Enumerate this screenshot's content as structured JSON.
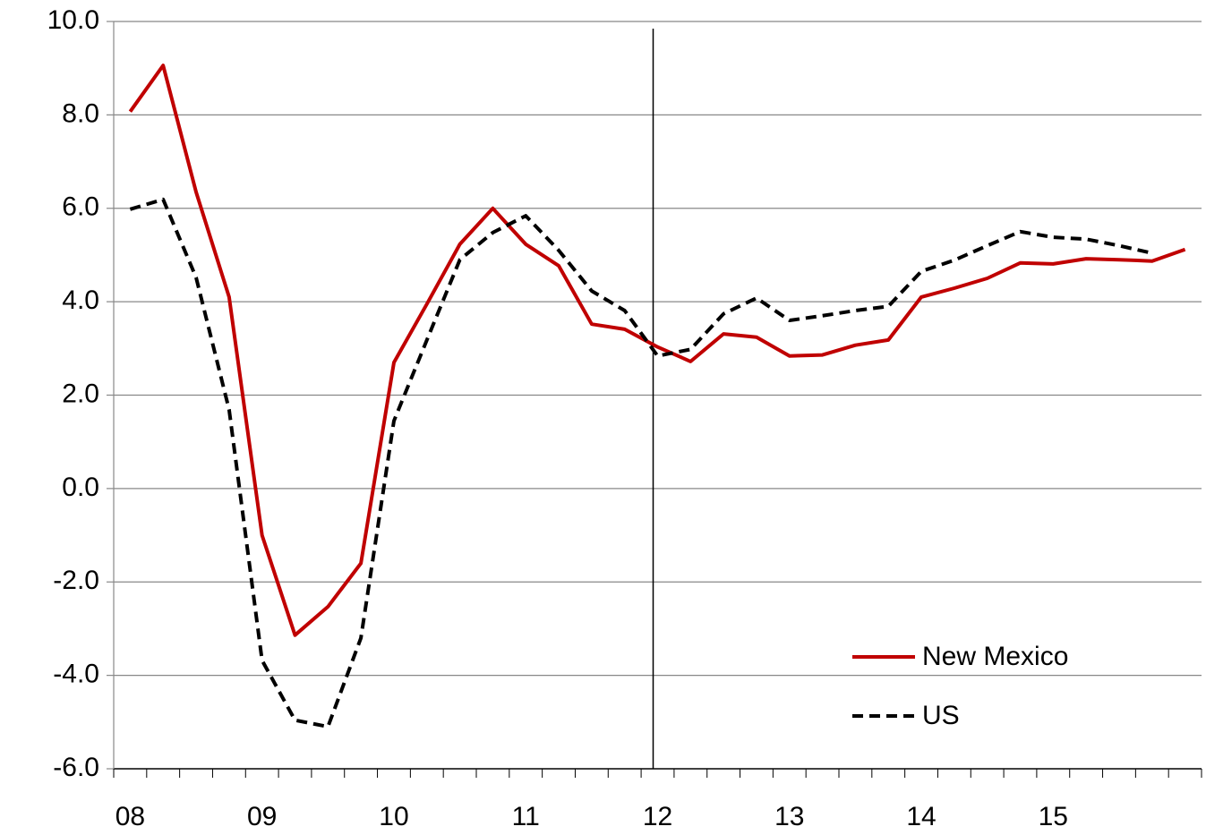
{
  "chart_data": {
    "type": "line",
    "categories": [
      "08",
      null,
      null,
      null,
      "09",
      null,
      null,
      null,
      "10",
      null,
      null,
      null,
      "11",
      null,
      null,
      null,
      "12",
      null,
      null,
      null,
      "13",
      null,
      null,
      null,
      "14",
      null,
      null,
      null,
      "15",
      null,
      null,
      null,
      null
    ],
    "series": [
      {
        "name": "New Mexico",
        "color": "#c00000",
        "dash": "solid",
        "values": [
          8.07,
          9.06,
          6.35,
          4.1,
          -1.0,
          -3.14,
          -2.53,
          -1.6,
          2.7,
          3.95,
          5.23,
          6.0,
          5.23,
          4.77,
          3.52,
          3.41,
          3.03,
          2.72,
          3.31,
          3.24,
          2.84,
          2.86,
          3.07,
          3.18,
          4.1,
          4.29,
          4.5,
          4.83,
          4.81,
          4.92,
          4.9,
          4.87,
          5.12
        ]
      },
      {
        "name": "US",
        "color": "#000000",
        "dash": "dashed",
        "values": [
          5.98,
          6.19,
          4.52,
          1.69,
          -3.68,
          -4.96,
          -5.1,
          -3.2,
          1.45,
          3.18,
          4.9,
          5.48,
          5.84,
          5.1,
          4.23,
          3.81,
          2.84,
          2.98,
          3.74,
          4.08,
          3.6,
          3.7,
          3.81,
          3.9,
          4.65,
          4.89,
          5.2,
          5.5,
          5.38,
          5.34,
          5.2,
          5.04,
          null
        ]
      }
    ],
    "ylim": [
      -6,
      10
    ],
    "yticks": [
      {
        "value": -6,
        "label": "-6.0"
      },
      {
        "value": -4,
        "label": "-4.0"
      },
      {
        "value": -2,
        "label": "-2.0"
      },
      {
        "value": 0,
        "label": "0.0"
      },
      {
        "value": 2,
        "label": "2.0"
      },
      {
        "value": 4,
        "label": "4.0"
      },
      {
        "value": 6,
        "label": "6.0"
      },
      {
        "value": 8,
        "label": "8.0"
      },
      {
        "value": 10,
        "label": "10.0"
      }
    ],
    "grid": true,
    "vline_at": "12",
    "legend": "lower right"
  }
}
